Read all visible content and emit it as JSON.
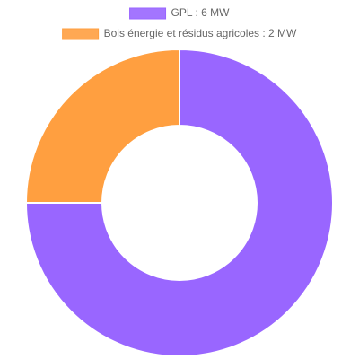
{
  "chart_data": {
    "type": "doughnut",
    "categories": [
      "GPL : 6 MW",
      "Bois énergie et résidus agricoles : 2 MW"
    ],
    "values": [
      6,
      2
    ],
    "colors": [
      "#9966ff",
      "#ff9f40"
    ]
  }
}
